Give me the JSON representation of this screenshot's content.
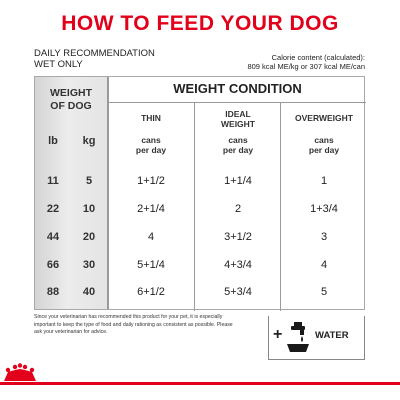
{
  "title": "HOW TO FEED YOUR DOG",
  "daily": {
    "line1": "DAILY RECOMMENDATION",
    "line2": "WET ONLY"
  },
  "calorie": {
    "line1": "Calorie content (calculated):",
    "line2": "809 kcal ME/kg or 307 kcal ME/can"
  },
  "table": {
    "weight_header_line1": "WEIGHT",
    "weight_header_line2": "OF DOG",
    "unit_lb": "lb",
    "unit_kg": "kg",
    "condition_header": "WEIGHT CONDITION",
    "columns": [
      {
        "name_line1": "THIN",
        "name_line2": "",
        "cans_line1": "cans",
        "cans_line2": "per day"
      },
      {
        "name_line1": "IDEAL",
        "name_line2": "WEIGHT",
        "cans_line1": "cans",
        "cans_line2": "per day"
      },
      {
        "name_line1": "OVERWEIGHT",
        "name_line2": "",
        "cans_line1": "cans",
        "cans_line2": "per day"
      }
    ],
    "rows": [
      {
        "lb": "11",
        "kg": "5",
        "thin": "1+1/2",
        "ideal": "1+1/4",
        "over": "1"
      },
      {
        "lb": "22",
        "kg": "10",
        "thin": "2+1/4",
        "ideal": "2",
        "over": "1+3/4"
      },
      {
        "lb": "44",
        "kg": "20",
        "thin": "4",
        "ideal": "3+1/2",
        "over": "3"
      },
      {
        "lb": "66",
        "kg": "30",
        "thin": "5+1/4",
        "ideal": "4+3/4",
        "over": "4"
      },
      {
        "lb": "88",
        "kg": "40",
        "thin": "6+1/2",
        "ideal": "5+3/4",
        "over": "5"
      }
    ]
  },
  "note": "Since your veterinarian has recommended this product for your pet, it is especially important to keep the type of food and daily rationing as consistent as possible. Please ask your veterinarian for advice.",
  "water": {
    "plus": "+",
    "label": "WATER"
  },
  "colors": {
    "brand_red": "#e2001a",
    "panel_gray": "#e4e4e4",
    "rule_gray": "#9a9a9a"
  }
}
